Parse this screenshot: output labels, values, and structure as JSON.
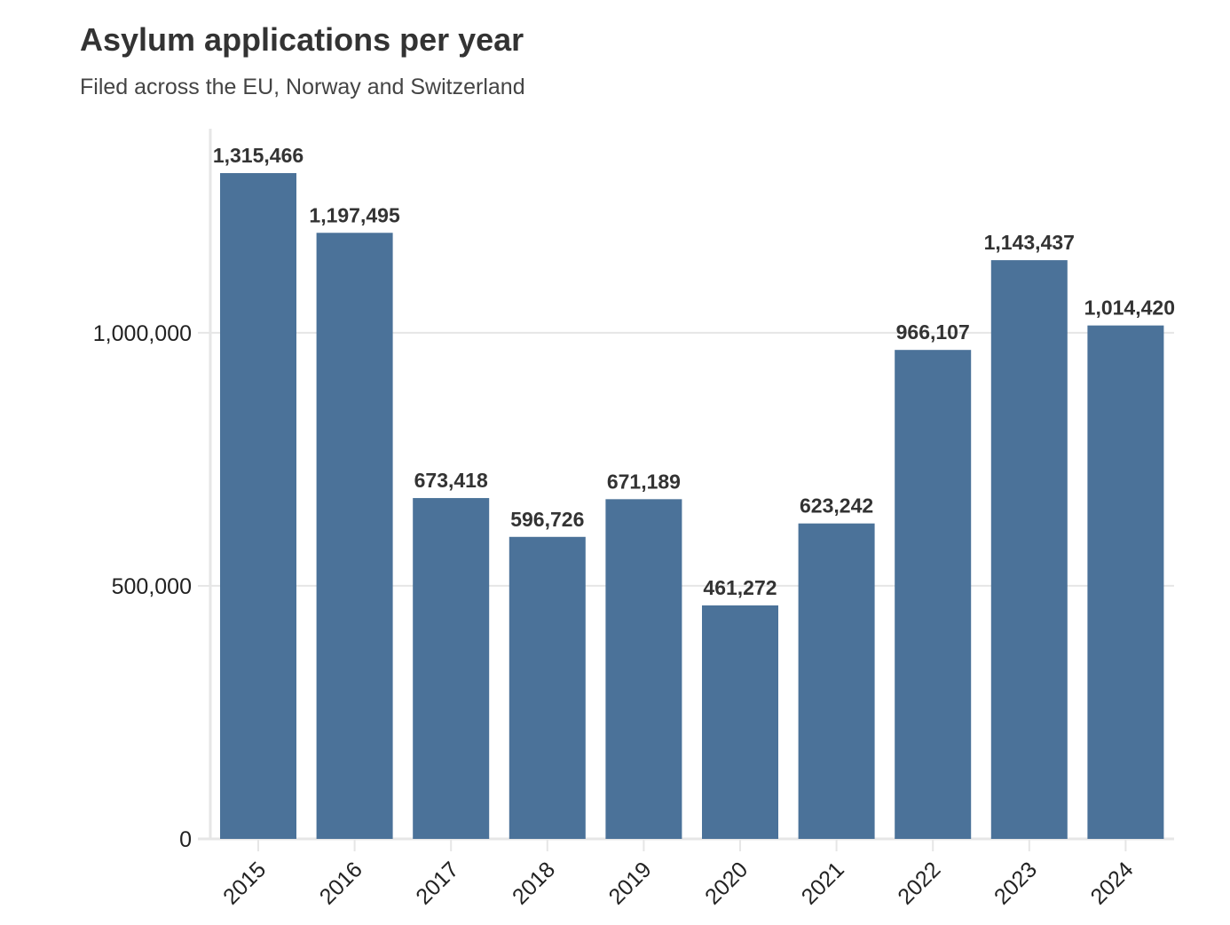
{
  "title": "Asylum applications per year",
  "subtitle": "Filed across the EU, Norway and Switzerland",
  "colors": {
    "bar": "#4b7299",
    "grid": "#e6e6e6",
    "axis": "#e6e6e6",
    "text": "#333333"
  },
  "chart_data": {
    "type": "bar",
    "title": "Asylum applications per year",
    "subtitle": "Filed across the EU, Norway and Switzerland",
    "categories": [
      "2015",
      "2016",
      "2017",
      "2018",
      "2019",
      "2020",
      "2021",
      "2022",
      "2023",
      "2024"
    ],
    "values": [
      1315466,
      1197495,
      673418,
      596726,
      671189,
      461272,
      623242,
      966107,
      1143437,
      1014420
    ],
    "data_labels": [
      "1,315,466",
      "1,197,495",
      "673,418",
      "596,726",
      "671,189",
      "461,272",
      "623,242",
      "966,107",
      "1,143,437",
      "1,014,420"
    ],
    "xlabel": "",
    "ylabel": "",
    "ylim": [
      0,
      1315466
    ],
    "y_ticks": [
      0,
      500000,
      1000000
    ],
    "y_tick_labels": [
      "0",
      "500,000",
      "1,000,000"
    ],
    "grid": true,
    "legend": "none"
  }
}
